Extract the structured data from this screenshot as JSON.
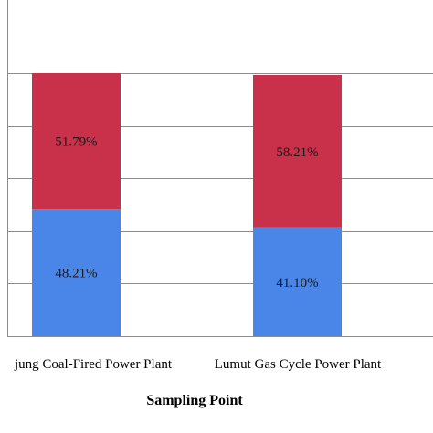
{
  "chart_data": {
    "type": "bar",
    "stacked": true,
    "percent": true,
    "categories": [
      "jung Coal-Fired Power Plant",
      "Lumut Gas Cycle Power Plant"
    ],
    "series": [
      {
        "values": [
          48.21,
          41.1
        ],
        "labels": [
          "48.21%",
          "41.10%"
        ],
        "color": "#4a86e8"
      },
      {
        "values": [
          51.79,
          58.21
        ],
        "labels": [
          "51.79%",
          "58.21%"
        ],
        "color": "#c9304a"
      }
    ],
    "xlabel": "Sampling Point",
    "ylabel": "",
    "ylim": [
      0,
      100
    ],
    "y_gridline_step": 20,
    "grid": true,
    "legend": "none",
    "data_label_color": "#1a1a1a"
  }
}
